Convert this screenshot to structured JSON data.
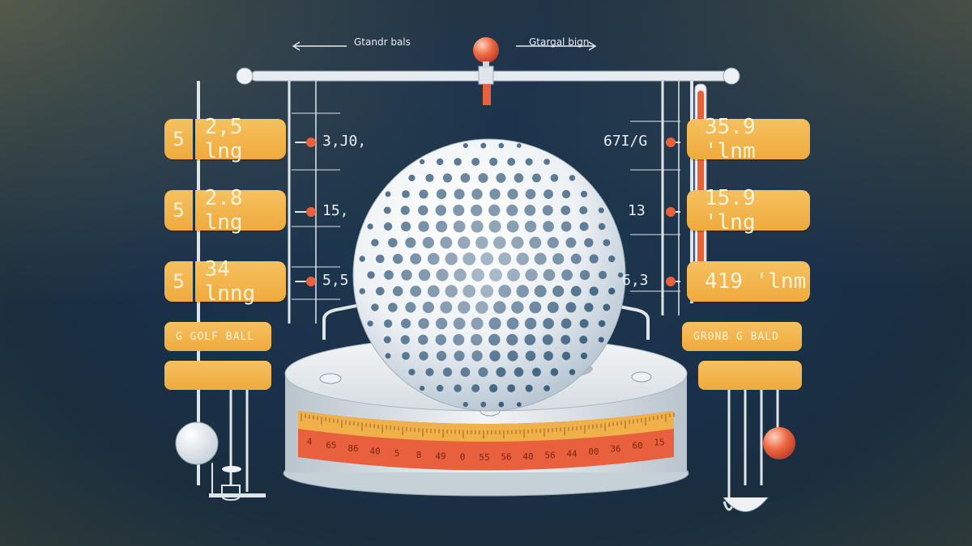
{
  "top": {
    "left_label": "Gtandr bals",
    "right_label": "Gtargal bign"
  },
  "left_pills": [
    {
      "num": "5",
      "value": "2,5 lng"
    },
    {
      "num": "5",
      "value": "2.8 lng"
    },
    {
      "num": "5",
      "value": "34 lnng"
    }
  ],
  "right_pills": [
    {
      "value": "35.9 'lnm"
    },
    {
      "value": "15.9 'lng"
    },
    {
      "value": "419 'lnm"
    }
  ],
  "left_mid_labels": [
    "3,J0,",
    "15,",
    "5,5"
  ],
  "right_mid_labels": [
    "67I/G",
    "13",
    "6,3"
  ],
  "left_tags": [
    "G  GOLF  BALL",
    ""
  ],
  "right_tags": [
    "GR0NB G BALD",
    ""
  ],
  "scale_numbers": [
    "4",
    "65",
    "86",
    "40",
    "5",
    "8",
    "49",
    "0",
    "55",
    "56",
    "40",
    "56",
    "44",
    "00",
    "36",
    "60",
    "15"
  ],
  "colors": {
    "accent": "#efaa3d",
    "marker": "#e8603c",
    "background": "#1b3145"
  }
}
